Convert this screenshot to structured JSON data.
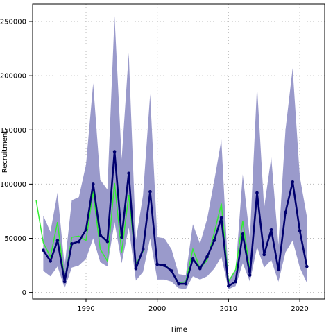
{
  "chart_data": {
    "type": "line",
    "title": "",
    "xlabel": "Time",
    "ylabel": "Recruitment",
    "xlim": [
      1982.5,
      2023.5
    ],
    "ylim": [
      -6000,
      266000
    ],
    "xticks": [
      1990,
      2000,
      2010,
      2020
    ],
    "yticks": [
      0,
      50000,
      100000,
      150000,
      200000,
      250000
    ],
    "ytick_labels": [
      "0",
      "50000",
      "100000",
      "150000",
      "200000",
      "250000"
    ],
    "grid": true,
    "colors": {
      "band": "#9a9acb",
      "estimate": "#00006e",
      "observed": "#33ee33",
      "grid": "#bbbbbb"
    },
    "band": {
      "x": [
        1984,
        1985,
        1986,
        1987,
        1988,
        1989,
        1990,
        1991,
        1992,
        1993,
        1994,
        1995,
        1996,
        1997,
        1998,
        1999,
        2000,
        2001,
        2002,
        2003,
        2004,
        2005,
        2006,
        2007,
        2008,
        2009,
        2010,
        2011,
        2012,
        2013,
        2014,
        2015,
        2016,
        2017,
        2018,
        2019,
        2020,
        2021
      ],
      "lower": [
        20000,
        15000,
        24000,
        4000,
        23000,
        25000,
        31000,
        50000,
        28000,
        24000,
        65000,
        27000,
        60000,
        11000,
        19000,
        50000,
        12000,
        12000,
        10000,
        4000,
        3000,
        15000,
        12000,
        15000,
        22000,
        33000,
        3000,
        6000,
        27000,
        10000,
        42000,
        23000,
        30000,
        10000,
        37000,
        48000,
        23000,
        9000
      ],
      "upper": [
        71000,
        56000,
        92000,
        24000,
        85000,
        88000,
        118000,
        193000,
        104000,
        95000,
        255000,
        123000,
        221000,
        48000,
        90000,
        183000,
        51000,
        50000,
        40000,
        17000,
        16000,
        63000,
        45000,
        68000,
        103000,
        141000,
        12000,
        20000,
        109000,
        50000,
        191000,
        78000,
        125000,
        44000,
        150000,
        207000,
        107000,
        70000
      ]
    },
    "series": [
      {
        "role": "estimate",
        "x": [
          1984,
          1985,
          1986,
          1987,
          1988,
          1989,
          1990,
          1991,
          1992,
          1993,
          1994,
          1995,
          1996,
          1997,
          1998,
          1999,
          2000,
          2001,
          2002,
          2003,
          2004,
          2005,
          2006,
          2007,
          2008,
          2009,
          2010,
          2011,
          2012,
          2013,
          2014,
          2015,
          2016,
          2017,
          2018,
          2019,
          2020,
          2021
        ],
        "values": [
          39000,
          29000,
          48000,
          10000,
          45000,
          47000,
          58000,
          100000,
          53000,
          47000,
          130000,
          51000,
          110000,
          22000,
          40000,
          93000,
          26000,
          25000,
          20000,
          8000,
          8000,
          31000,
          22000,
          33000,
          48000,
          69000,
          6000,
          10000,
          54000,
          16000,
          92000,
          35000,
          58000,
          21000,
          74000,
          102000,
          57000,
          24000
        ]
      },
      {
        "role": "observed",
        "x": [
          1983,
          1984,
          1985,
          1986,
          1987,
          1988,
          1989,
          1990,
          1991,
          1992,
          1993,
          1994,
          1995,
          1996,
          1997,
          1998,
          1999,
          2000,
          2001,
          2002,
          2003,
          2004,
          2005,
          2006,
          2007,
          2008,
          2009,
          2010,
          2011,
          2012,
          2013
        ],
        "values": [
          85000,
          46000,
          33000,
          65000,
          10000,
          51000,
          52000,
          48000,
          93000,
          40000,
          29000,
          101000,
          37000,
          90000,
          26000,
          38000,
          92000,
          26000,
          26000,
          20000,
          9000,
          10000,
          40000,
          22000,
          30000,
          55000,
          82000,
          10000,
          21000,
          66000,
          20000
        ]
      }
    ]
  }
}
